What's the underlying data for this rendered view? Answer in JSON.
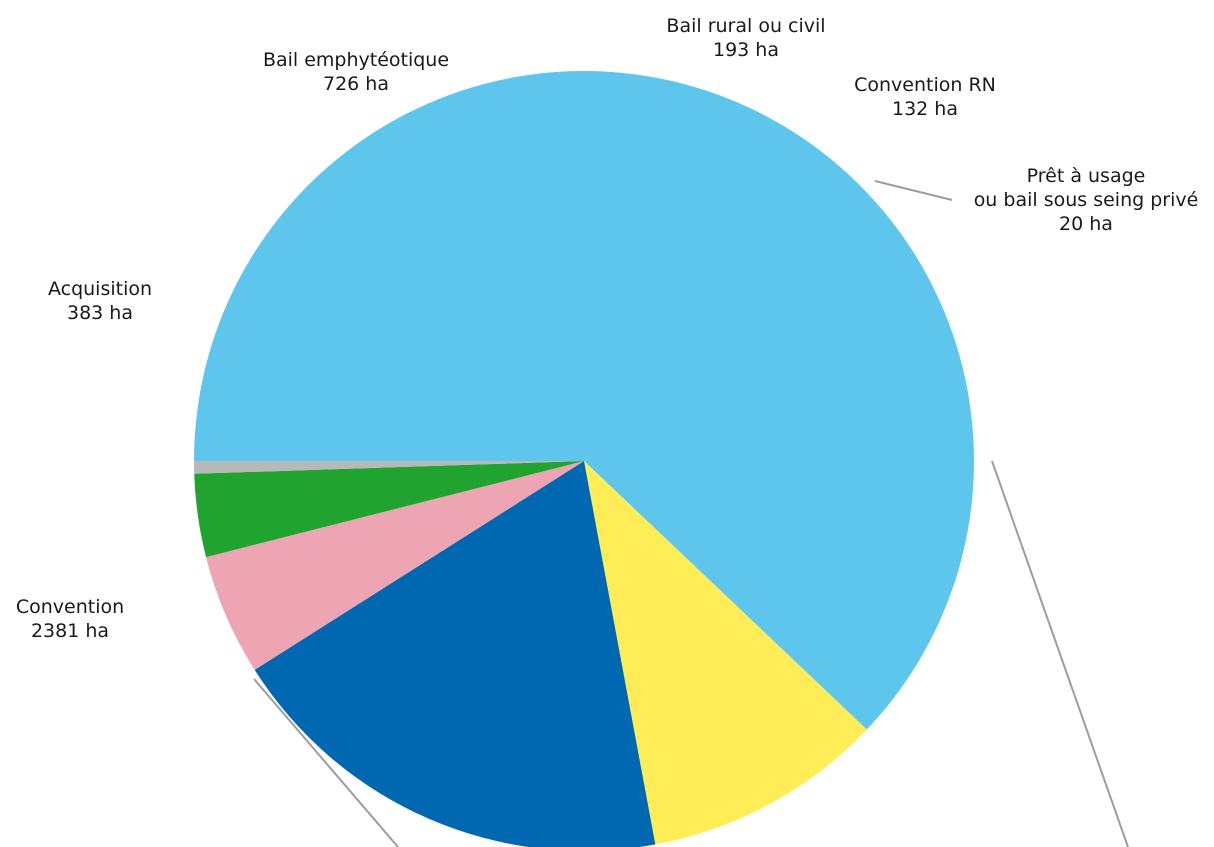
{
  "chart_data": {
    "type": "pie",
    "unit": "ha",
    "slices": [
      {
        "label_lines": [
          "Convention"
        ],
        "value_text": "2381 ha",
        "value": 2381,
        "color": "#5EC5EC"
      },
      {
        "label_lines": [
          "Acquisition"
        ],
        "value_text": "383 ha",
        "value": 383,
        "color": "#FFED57"
      },
      {
        "label_lines": [
          "Bail emphytéotique"
        ],
        "value_text": "726 ha",
        "value": 726,
        "color": "#0068B0"
      },
      {
        "label_lines": [
          "Bail rural ou civil"
        ],
        "value_text": "193 ha",
        "value": 193,
        "color": "#EDA4B3"
      },
      {
        "label_lines": [
          "Convention RN"
        ],
        "value_text": "132 ha",
        "value": 132,
        "color": "#21A330"
      },
      {
        "label_lines": [
          "Prêt à usage",
          "ou bail sous seing privé"
        ],
        "value_text": "20 ha",
        "value": 20,
        "color": "#B7B8B8"
      }
    ]
  }
}
